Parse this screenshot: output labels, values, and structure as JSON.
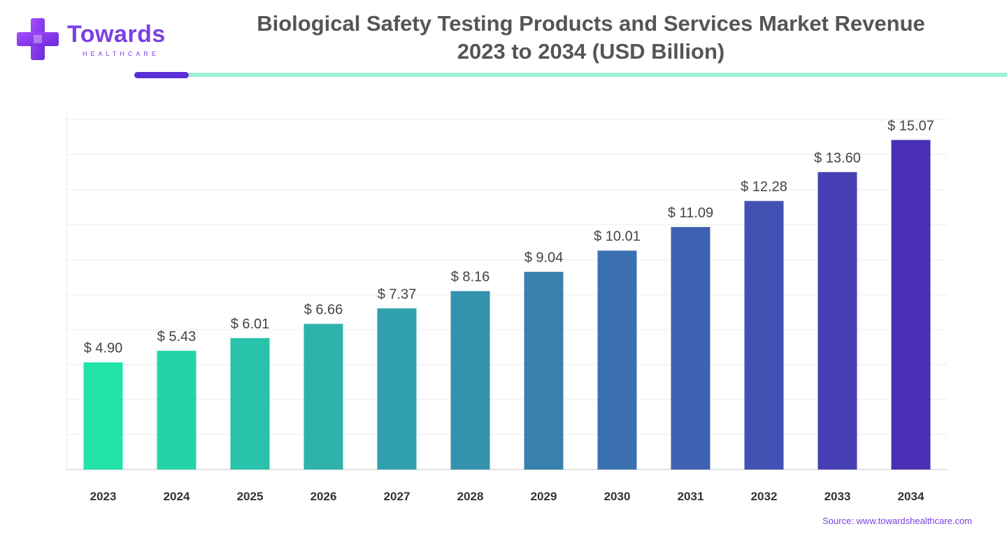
{
  "brand": {
    "name": "Towards",
    "sub": "HEALTHCARE"
  },
  "title_line1": "Biological Safety Testing Products and Services Market Revenue",
  "title_line2": "2023 to 2034 (USD Billion)",
  "source": "Source: www.towardshealthcare.com",
  "colors": {
    "brand_purple": "#7b3fe4",
    "accent_line": "#9ff0d6",
    "bar_start": "#22e3a8",
    "bar_end": "#4a30b5"
  },
  "chart_data": {
    "type": "bar",
    "title": "Biological Safety Testing Products and Services Market Revenue 2023 to 2034 (USD Billion)",
    "categories": [
      "2023",
      "2024",
      "2025",
      "2026",
      "2027",
      "2028",
      "2029",
      "2030",
      "2031",
      "2032",
      "2033",
      "2034"
    ],
    "values": [
      4.9,
      5.43,
      6.01,
      6.66,
      7.37,
      8.16,
      9.04,
      10.01,
      11.09,
      12.28,
      13.6,
      15.07
    ],
    "data_labels": [
      "$ 4.90",
      "$ 5.43",
      "$ 6.01",
      "$ 6.66",
      "$ 7.37",
      "$ 8.16",
      "$ 9.04",
      "$ 10.01",
      "$ 11.09",
      "$ 12.28",
      "$ 13.60",
      "$ 15.07"
    ],
    "ylim": [
      0,
      16
    ],
    "grid": true,
    "legend": "none"
  }
}
